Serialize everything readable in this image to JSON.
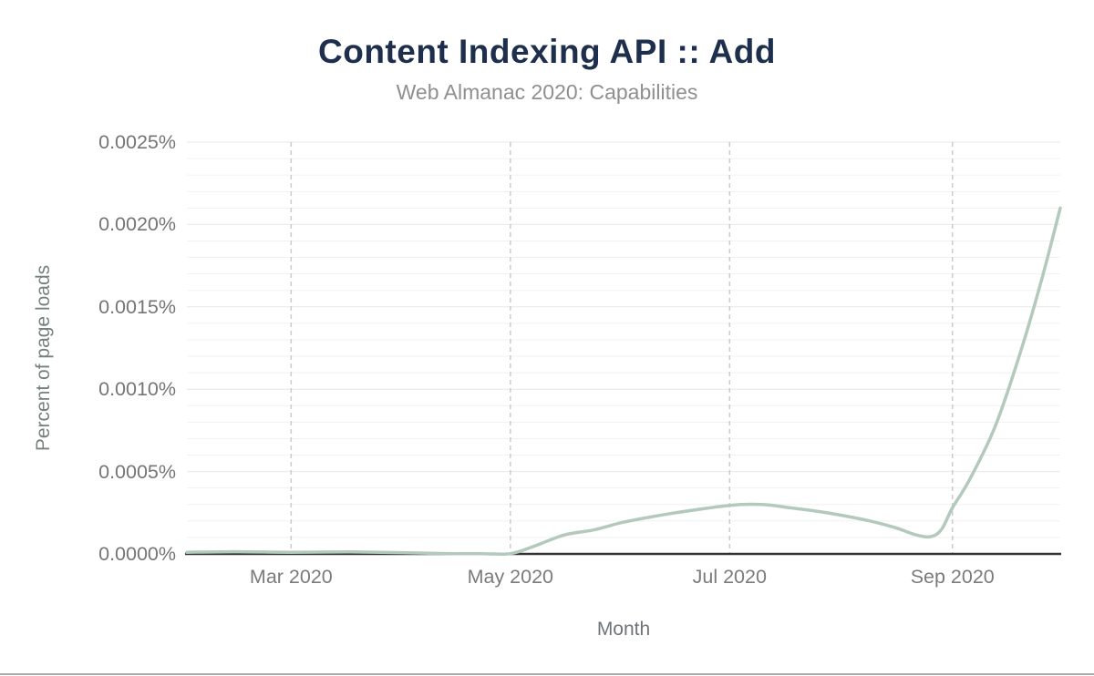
{
  "chart_data": {
    "type": "line",
    "title": "Content Indexing API :: Add",
    "subtitle": "Web Almanac 2020: Capabilities",
    "xlabel": "Month",
    "ylabel": "Percent of page loads",
    "x_range": [
      "2020-02-01",
      "2020-10-01"
    ],
    "ylim": [
      0,
      0.0025
    ],
    "y_unit": "%",
    "y_major_step": 0.0005,
    "y_minor_step": 0.0001,
    "legend": "none",
    "grid": {
      "horizontal_minor": true,
      "horizontal_major": true,
      "vertical_dashed_at_labeled_months": true
    },
    "y_ticks": [
      {
        "value": 0.0025,
        "label": "0.0025%"
      },
      {
        "value": 0.002,
        "label": "0.0020%"
      },
      {
        "value": 0.0015,
        "label": "0.0015%"
      },
      {
        "value": 0.001,
        "label": "0.0010%"
      },
      {
        "value": 0.0005,
        "label": "0.0005%"
      },
      {
        "value": 0.0,
        "label": "0.0000%"
      }
    ],
    "x_ticks": [
      {
        "date": "2020-03-01",
        "label": "Mar 2020"
      },
      {
        "date": "2020-05-01",
        "label": "May 2020"
      },
      {
        "date": "2020-07-01",
        "label": "Jul 2020"
      },
      {
        "date": "2020-09-01",
        "label": "Sep 2020"
      }
    ],
    "series": [
      {
        "name": "Percent of page loads",
        "color": "#b3c9bc",
        "points": [
          {
            "date": "2020-02-01",
            "value": 1e-05
          },
          {
            "date": "2020-02-15",
            "value": 1.3e-05
          },
          {
            "date": "2020-03-01",
            "value": 1e-05
          },
          {
            "date": "2020-03-17",
            "value": 1.2e-05
          },
          {
            "date": "2020-04-01",
            "value": 8e-06
          },
          {
            "date": "2020-04-13",
            "value": 2e-06
          },
          {
            "date": "2020-04-23",
            "value": 5e-07
          },
          {
            "date": "2020-05-01",
            "value": 5e-07
          },
          {
            "date": "2020-05-08",
            "value": 5e-05
          },
          {
            "date": "2020-05-16",
            "value": 0.000115
          },
          {
            "date": "2020-05-24",
            "value": 0.000145
          },
          {
            "date": "2020-06-01",
            "value": 0.00019
          },
          {
            "date": "2020-06-08",
            "value": 0.00022
          },
          {
            "date": "2020-06-16",
            "value": 0.00025
          },
          {
            "date": "2020-07-01",
            "value": 0.000295
          },
          {
            "date": "2020-07-10",
            "value": 0.0003
          },
          {
            "date": "2020-07-18",
            "value": 0.00028
          },
          {
            "date": "2020-07-25",
            "value": 0.00026
          },
          {
            "date": "2020-08-01",
            "value": 0.000235
          },
          {
            "date": "2020-08-09",
            "value": 0.0002
          },
          {
            "date": "2020-08-16",
            "value": 0.00016
          },
          {
            "date": "2020-08-22",
            "value": 0.000115
          },
          {
            "date": "2020-08-26",
            "value": 0.000105
          },
          {
            "date": "2020-08-29",
            "value": 0.00015
          },
          {
            "date": "2020-09-01",
            "value": 0.00028
          },
          {
            "date": "2020-09-06",
            "value": 0.00046
          },
          {
            "date": "2020-09-13",
            "value": 0.00078
          },
          {
            "date": "2020-09-20",
            "value": 0.00123
          },
          {
            "date": "2020-09-26",
            "value": 0.00168
          },
          {
            "date": "2020-10-01",
            "value": 0.0021
          }
        ]
      }
    ]
  },
  "colors": {
    "title": "#1e2f4e",
    "subtitle": "#8f8f8f",
    "tick_label": "#757575",
    "axis_title": "#6e7478",
    "line": "#b3c9bc",
    "grid_minor": "#f1f1f1",
    "grid_major": "#e7e7e7",
    "month_gridline": "#cbcbcb",
    "axis_line": "#333333",
    "window_edge": "#ababab"
  }
}
